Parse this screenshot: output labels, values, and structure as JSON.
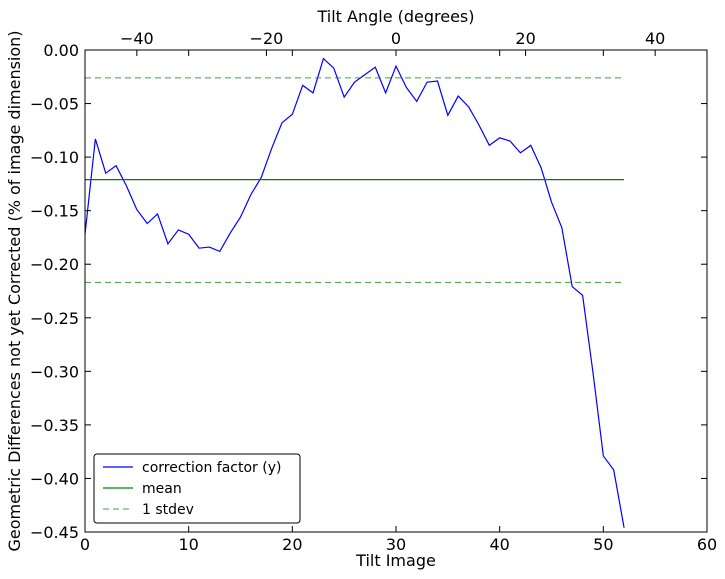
{
  "chart_data": {
    "type": "line",
    "xlabel": "Tilt Image",
    "ylabel": "Geometric Differences not yet Corrected (% of image dimension)",
    "x2label": "Tilt Angle (degrees)",
    "xlim": [
      0,
      60
    ],
    "ylim": [
      -0.45,
      0.0
    ],
    "x2lim": [
      -48,
      48
    ],
    "xticks": [
      0,
      10,
      20,
      30,
      40,
      50,
      60
    ],
    "xtick_labels": [
      "0",
      "10",
      "20",
      "30",
      "40",
      "50",
      "60"
    ],
    "x2ticks": [
      -40,
      -20,
      0,
      20,
      40
    ],
    "x2tick_labels": [
      "−40",
      "−20",
      "0",
      "20",
      "40"
    ],
    "yticks": [
      0.0,
      -0.05,
      -0.1,
      -0.15,
      -0.2,
      -0.25,
      -0.3,
      -0.35,
      -0.4,
      -0.45
    ],
    "ytick_labels": [
      "0.00",
      "−0.05",
      "−0.10",
      "−0.15",
      "−0.20",
      "−0.25",
      "−0.30",
      "−0.35",
      "−0.40",
      "−0.45"
    ],
    "grid": false,
    "legend_position": "bottom-left",
    "series": [
      {
        "name": "correction factor (y)",
        "color": "#0000ff",
        "style": "solid",
        "x": [
          0,
          1,
          2,
          3,
          4,
          5,
          6,
          7,
          8,
          9,
          10,
          11,
          12,
          13,
          14,
          15,
          16,
          17,
          18,
          19,
          20,
          21,
          22,
          23,
          24,
          25,
          26,
          27,
          28,
          29,
          30,
          31,
          32,
          33,
          34,
          35,
          36,
          37,
          38,
          39,
          40,
          41,
          42,
          43,
          44,
          45,
          46,
          47,
          48,
          49,
          50,
          51,
          52
        ],
        "y": [
          -0.172,
          -0.083,
          -0.115,
          -0.108,
          -0.127,
          -0.149,
          -0.162,
          -0.153,
          -0.181,
          -0.168,
          -0.172,
          -0.185,
          -0.184,
          -0.188,
          -0.171,
          -0.156,
          -0.135,
          -0.119,
          -0.092,
          -0.068,
          -0.06,
          -0.033,
          -0.04,
          -0.008,
          -0.017,
          -0.044,
          -0.03,
          -0.023,
          -0.016,
          -0.04,
          -0.015,
          -0.035,
          -0.048,
          -0.03,
          -0.029,
          -0.061,
          -0.043,
          -0.053,
          -0.07,
          -0.089,
          -0.082,
          -0.085,
          -0.096,
          -0.089,
          -0.11,
          -0.142,
          -0.166,
          -0.221,
          -0.229,
          -0.301,
          -0.379,
          -0.392,
          -0.446
        ]
      },
      {
        "name": "mean",
        "color": "#008000",
        "style": "solid",
        "x": [
          0,
          52
        ],
        "y": [
          -0.121,
          -0.121
        ]
      },
      {
        "name": "1 stdev",
        "color": "#008000",
        "style": "dashed",
        "x": [
          0,
          52
        ],
        "y": [
          -0.026,
          -0.026
        ]
      },
      {
        "name": "",
        "color": "#008000",
        "style": "dashed",
        "x": [
          0,
          52
        ],
        "y": [
          -0.217,
          -0.217
        ]
      }
    ],
    "legend": [
      "correction factor (y)",
      "mean",
      "1 stdev"
    ]
  }
}
